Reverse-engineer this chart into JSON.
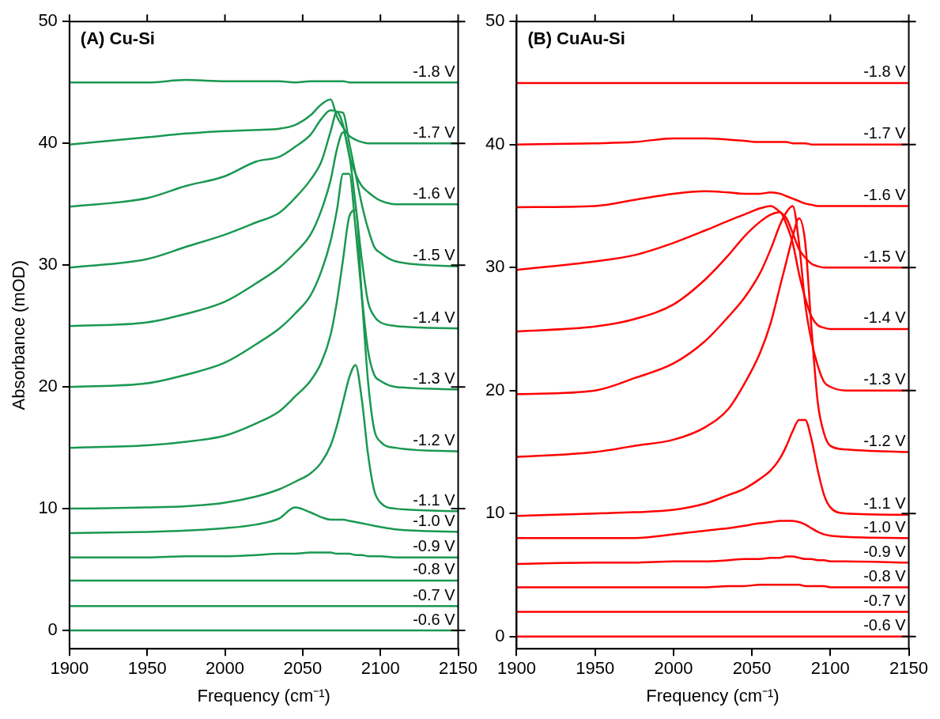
{
  "chart_data": [
    {
      "type": "line",
      "title": "(A) Cu-Si",
      "xlabel": "Frequency (cm⁻¹)",
      "ylabel": "Absorbance (mOD)",
      "xlim": [
        1900,
        2150
      ],
      "xticks": [
        1900,
        1950,
        2000,
        2050,
        2100,
        2150
      ],
      "ylim": [
        -1.5,
        50
      ],
      "yticks": [
        0,
        10,
        20,
        30,
        40,
        50
      ],
      "grid": false,
      "legend": false,
      "marker": "none",
      "line_style": "solid",
      "x": [
        1900,
        1950,
        1975,
        2000,
        2020,
        2035,
        2045,
        2055,
        2062,
        2068,
        2072,
        2076,
        2080,
        2084,
        2088,
        2092,
        2096,
        2100,
        2110,
        2150
      ],
      "series": [
        {
          "name": "-0.6 V",
          "color": "#1a9850",
          "values": [
            0,
            0,
            0,
            0,
            0,
            0,
            0,
            0,
            0,
            0,
            0,
            0,
            0,
            0,
            0,
            0,
            0,
            0,
            0,
            0
          ]
        },
        {
          "name": "-0.7 V",
          "color": "#1a9850",
          "values": [
            2,
            2,
            2,
            2,
            2,
            2,
            2,
            2,
            2,
            2,
            2,
            2,
            2,
            2,
            2,
            2,
            2,
            2,
            2,
            2
          ]
        },
        {
          "name": "-0.8 V",
          "color": "#1a9850",
          "values": [
            4.1,
            4.1,
            4.1,
            4.1,
            4.1,
            4.1,
            4.1,
            4.1,
            4.1,
            4.1,
            4.1,
            4.1,
            4.1,
            4.1,
            4.1,
            4.1,
            4.1,
            4.1,
            4.1,
            4.1
          ]
        },
        {
          "name": "-0.9 V",
          "color": "#1a9850",
          "values": [
            6,
            6,
            6.1,
            6.1,
            6.2,
            6.3,
            6.3,
            6.4,
            6.4,
            6.4,
            6.3,
            6.3,
            6.3,
            6.2,
            6.2,
            6.1,
            6.1,
            6.1,
            6,
            6
          ]
        },
        {
          "name": "-1.0 V",
          "color": "#1a9850",
          "values": [
            8,
            8.1,
            8.2,
            8.4,
            8.7,
            9.2,
            10.1,
            9.7,
            9.3,
            9.1,
            9.1,
            9.1,
            9,
            8.9,
            8.8,
            8.7,
            8.6,
            8.5,
            8.3,
            8.1
          ]
        },
        {
          "name": "-1.1 V",
          "color": "#1a9850",
          "values": [
            10,
            10.1,
            10.2,
            10.5,
            11,
            11.6,
            12.2,
            12.9,
            13.8,
            15.2,
            16.8,
            18.8,
            20.8,
            21.8,
            19,
            14.5,
            11.5,
            10.5,
            10,
            9.8
          ]
        },
        {
          "name": "-1.2 V",
          "color": "#1a9850",
          "values": [
            15,
            15.2,
            15.5,
            16,
            17,
            18,
            19.2,
            20.5,
            22,
            24.3,
            27,
            30.5,
            34,
            34.5,
            27.5,
            20.5,
            16.5,
            15.5,
            15,
            14.7
          ]
        },
        {
          "name": "-1.3 V",
          "color": "#1a9850",
          "values": [
            20,
            20.3,
            21,
            22,
            23.5,
            24.8,
            26,
            27.5,
            29.5,
            32,
            34.5,
            37.5,
            37.5,
            33,
            27.5,
            23,
            21,
            20.5,
            20,
            19.8
          ]
        },
        {
          "name": "-1.4 V",
          "color": "#1a9850",
          "values": [
            25,
            25.3,
            26,
            27,
            28.5,
            29.8,
            31,
            32.5,
            34.5,
            37,
            39.5,
            40.9,
            39,
            35,
            30.5,
            27,
            25.8,
            25.3,
            25,
            24.8
          ]
        },
        {
          "name": "-1.5 V",
          "color": "#1a9850",
          "values": [
            29.8,
            30.5,
            31.5,
            32.5,
            33.5,
            34.3,
            35.5,
            37,
            38.5,
            41,
            42.6,
            42.5,
            40,
            37.5,
            35,
            33,
            31.5,
            31,
            30.3,
            29.9
          ]
        },
        {
          "name": "-1.6 V",
          "color": "#1a9850",
          "values": [
            34.8,
            35.5,
            36.5,
            37.3,
            38.5,
            38.9,
            39.7,
            40.7,
            42,
            42.7,
            42.6,
            41.5,
            39,
            37.5,
            36.5,
            36,
            35.6,
            35.3,
            35,
            35
          ]
        },
        {
          "name": "-1.7 V",
          "color": "#1a9850",
          "values": [
            39.9,
            40.5,
            40.8,
            41,
            41.1,
            41.2,
            41.5,
            42.3,
            43.2,
            43.6,
            42.2,
            41.3,
            40.6,
            40.3,
            40.1,
            40,
            40,
            40,
            40,
            40
          ]
        },
        {
          "name": "-1.8 V",
          "color": "#1a9850",
          "values": [
            45,
            45,
            45.2,
            45.1,
            45.1,
            45.1,
            45,
            45.1,
            45.1,
            45.1,
            45.1,
            45.1,
            45,
            45,
            45,
            45,
            45,
            45,
            45,
            45
          ]
        }
      ]
    },
    {
      "type": "line",
      "title": "(B) CuAu-Si",
      "xlabel": "Frequency (cm⁻¹)",
      "xlim": [
        1900,
        2150
      ],
      "xticks": [
        1900,
        1950,
        2000,
        2050,
        2100,
        2150
      ],
      "ylim": [
        -1,
        50
      ],
      "yticks": [
        0,
        10,
        20,
        30,
        40,
        50
      ],
      "grid": false,
      "legend": false,
      "marker": "none",
      "line_style": "solid",
      "x": [
        1900,
        1950,
        1975,
        2000,
        2020,
        2035,
        2045,
        2055,
        2062,
        2068,
        2072,
        2076,
        2080,
        2084,
        2088,
        2092,
        2096,
        2100,
        2110,
        2150
      ],
      "series": [
        {
          "name": "-0.6 V",
          "color": "#ff0000",
          "values": [
            0,
            0,
            0,
            0,
            0,
            0,
            0,
            0,
            0,
            0,
            0,
            0,
            0,
            0,
            0,
            0,
            0,
            0,
            0,
            0
          ]
        },
        {
          "name": "-0.7 V",
          "color": "#ff0000",
          "values": [
            2,
            2,
            2,
            2,
            2,
            2,
            2,
            2,
            2,
            2,
            2,
            2,
            2,
            2,
            2,
            2,
            2,
            2,
            2,
            2
          ]
        },
        {
          "name": "-0.8 V",
          "color": "#ff0000",
          "values": [
            4,
            4,
            4,
            4,
            4,
            4.1,
            4.1,
            4.2,
            4.2,
            4.2,
            4.2,
            4.2,
            4.2,
            4.1,
            4.1,
            4.1,
            4.1,
            4,
            4,
            4
          ]
        },
        {
          "name": "-0.9 V",
          "color": "#ff0000",
          "values": [
            5.9,
            6,
            6,
            6.1,
            6.1,
            6.2,
            6.3,
            6.3,
            6.4,
            6.4,
            6.5,
            6.5,
            6.4,
            6.3,
            6.3,
            6.2,
            6.2,
            6.1,
            6.1,
            6
          ]
        },
        {
          "name": "-1.0 V",
          "color": "#ff0000",
          "values": [
            8,
            8,
            8,
            8.3,
            8.6,
            8.8,
            9,
            9.2,
            9.3,
            9.4,
            9.4,
            9.4,
            9.3,
            9.1,
            8.8,
            8.5,
            8.3,
            8.2,
            8.1,
            8
          ]
        },
        {
          "name": "-1.1 V",
          "color": "#ff0000",
          "values": [
            9.8,
            10,
            10.1,
            10.3,
            10.8,
            11.5,
            12,
            12.8,
            13.5,
            14.5,
            15.5,
            16.7,
            17.6,
            17.6,
            16,
            13.5,
            11.5,
            10.5,
            10,
            9.9
          ]
        },
        {
          "name": "-1.2 V",
          "color": "#ff0000",
          "values": [
            14.6,
            15,
            15.5,
            16,
            17,
            18.5,
            20.5,
            23,
            25.5,
            28.5,
            30.5,
            32.5,
            34,
            32,
            25,
            19,
            16.5,
            15.5,
            15.2,
            15
          ]
        },
        {
          "name": "-1.3 V",
          "color": "#ff0000",
          "values": [
            19.7,
            20,
            21,
            22.2,
            24,
            26,
            27.5,
            29.5,
            31.5,
            33.5,
            34.5,
            35,
            32,
            27,
            24,
            22,
            20.7,
            20.3,
            20,
            20
          ]
        },
        {
          "name": "-1.4 V",
          "color": "#ff0000",
          "values": [
            24.8,
            25.2,
            25.8,
            27,
            29,
            31,
            32.5,
            33.7,
            34.3,
            34.5,
            33.5,
            32,
            29.5,
            27.5,
            26,
            25.3,
            25.1,
            25,
            25,
            25
          ]
        },
        {
          "name": "-1.5 V",
          "color": "#ff0000",
          "values": [
            29.8,
            30.5,
            31,
            32,
            33,
            33.8,
            34.3,
            34.8,
            35,
            34.5,
            34,
            32.8,
            31.5,
            30.8,
            30.3,
            30.1,
            30,
            30,
            30,
            30
          ]
        },
        {
          "name": "-1.6 V",
          "color": "#ff0000",
          "values": [
            34.9,
            35,
            35.5,
            36,
            36.2,
            36.1,
            36,
            36,
            36.1,
            36,
            35.8,
            35.6,
            35.4,
            35.2,
            35.1,
            35,
            35,
            35,
            35,
            35
          ]
        },
        {
          "name": "-1.7 V",
          "color": "#ff0000",
          "values": [
            40,
            40.1,
            40.2,
            40.5,
            40.5,
            40.4,
            40.3,
            40.2,
            40.2,
            40.2,
            40.2,
            40.1,
            40.1,
            40.1,
            40,
            40,
            40,
            40,
            40,
            40
          ]
        },
        {
          "name": "-1.8 V",
          "color": "#ff0000",
          "values": [
            45,
            45,
            45,
            45,
            45,
            45,
            45,
            45,
            45,
            45,
            45,
            45,
            45,
            45,
            45,
            45,
            45,
            45,
            45,
            45
          ]
        }
      ]
    }
  ]
}
